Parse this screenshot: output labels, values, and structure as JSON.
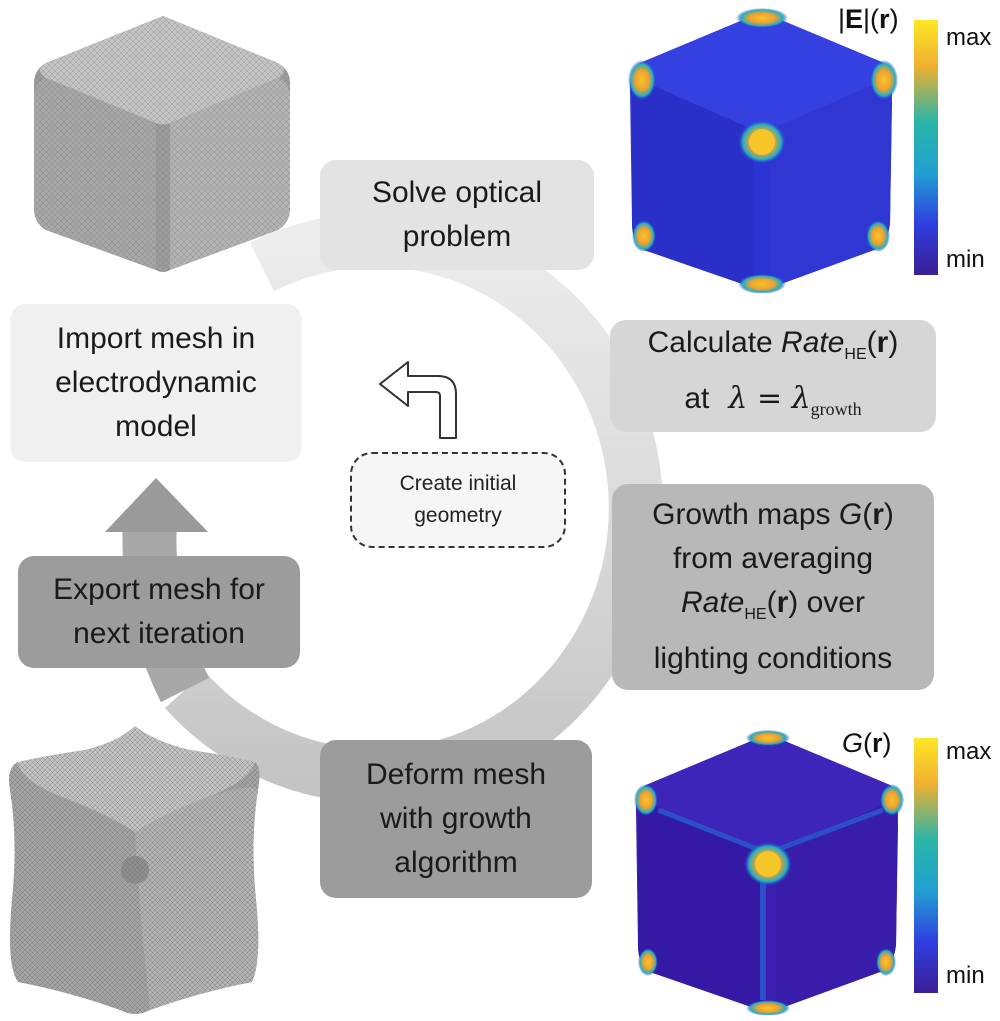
{
  "steps": {
    "solve": "Solve optical\nproblem",
    "import": "Import mesh in\nelectrodynamic\nmodel",
    "export": "Export mesh for\nnext iteration",
    "deform": "Deform mesh\nwith growth\nalgorithm",
    "create": "Create initial\ngeometry"
  },
  "calc": {
    "line1_prefix": "Calculate ",
    "rate": "Rate",
    "rate_sub": "HE",
    "r": "r",
    "at": "at",
    "lambda": "λ",
    "equals": " = ",
    "growth_sub": "growth"
  },
  "growth": {
    "line1": "Growth maps ",
    "G": "G",
    "r": "r",
    "line2": "from averaging",
    "rate": "Rate",
    "rate_sub": "HE",
    "line3_suffix": " over",
    "line4": "lighting conditions"
  },
  "field_colorbar": {
    "title_E": "E",
    "title_r": "r",
    "max": "max",
    "min": "min"
  },
  "growth_colorbar": {
    "title_G": "G",
    "title_r": "r",
    "max": "max",
    "min": "min"
  },
  "colors": {
    "viridis_top": "#fde725",
    "viridis_mid": "#21a8b8",
    "viridis_bottom": "#3b1f94",
    "field_bg": "#2f38d8"
  }
}
